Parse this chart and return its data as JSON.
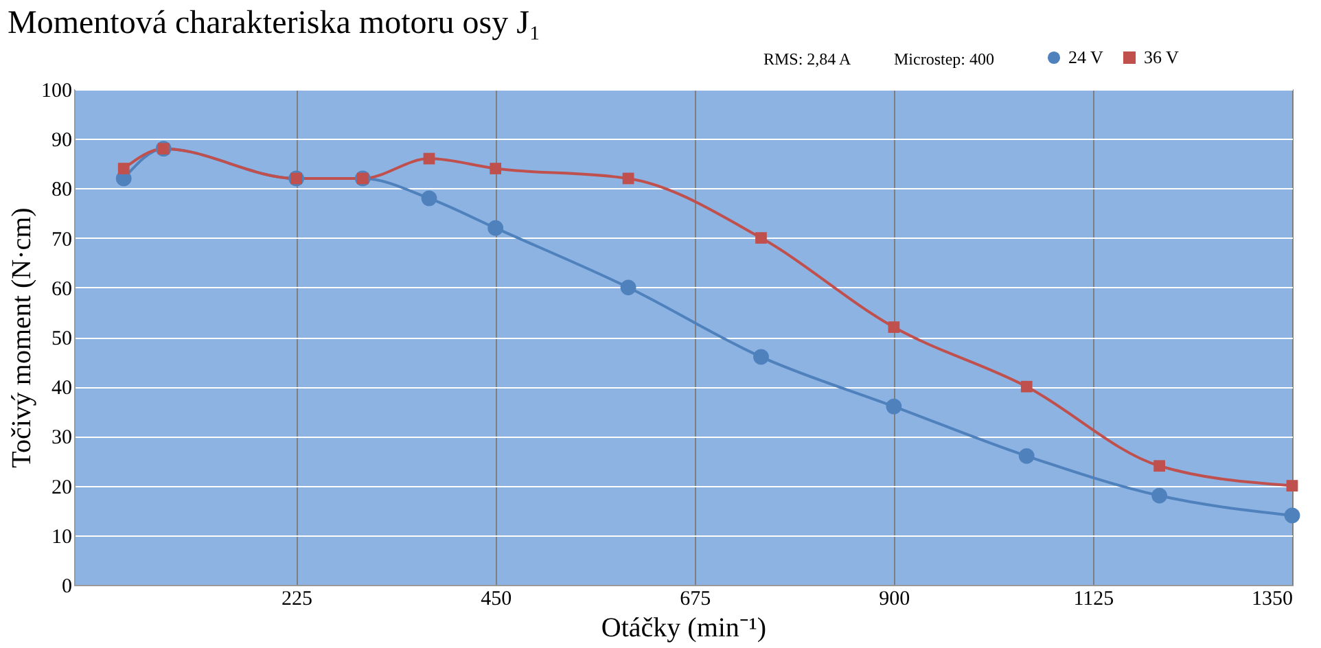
{
  "chart_data": {
    "type": "line",
    "title": "Momentová charakteriska motoru osy J₁",
    "xlabel": "Otáčky (min⁻¹)",
    "ylabel": "Točivý moment (N·cm)",
    "x": [
      30,
      75,
      225,
      300,
      375,
      450,
      600,
      750,
      900,
      1050,
      1200,
      1350
    ],
    "series": [
      {
        "name": "24 V",
        "color": "#4f81bd",
        "marker": "circle",
        "values": [
          82,
          88,
          82,
          82,
          78,
          72,
          60,
          46,
          36,
          26,
          18,
          14
        ]
      },
      {
        "name": "36 V",
        "color": "#c0504d",
        "marker": "square",
        "values": [
          84,
          88,
          82,
          82,
          86,
          84,
          82,
          70,
          52,
          40,
          24,
          20
        ]
      }
    ],
    "xlim": [
      -26,
      1350
    ],
    "xticks": [
      225,
      450,
      675,
      900,
      1125,
      1350
    ],
    "ylim": [
      0,
      100
    ],
    "yticks": [
      0,
      10,
      20,
      30,
      40,
      50,
      60,
      70,
      80,
      90,
      100
    ],
    "grid": true,
    "legend": "top right",
    "line_style": "solid",
    "annotations": [
      "RMS: 2,84 A",
      "Microstep: 400"
    ]
  }
}
